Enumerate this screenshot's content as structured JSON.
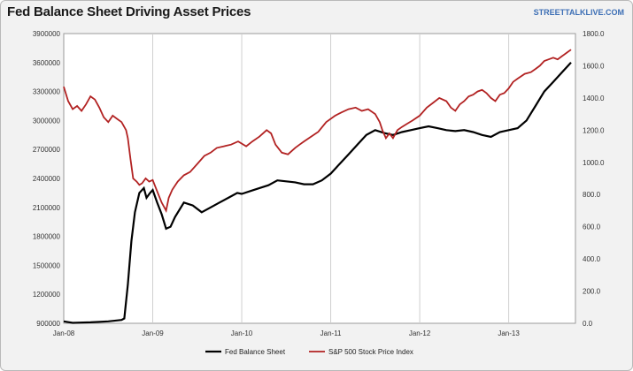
{
  "header": {
    "title": "Fed Balance Sheet Driving Asset Prices",
    "source": "STREETTALKLIVE.COM"
  },
  "chart_data": {
    "type": "line",
    "title": "Fed Balance Sheet Driving Asset Prices",
    "xlabel": "",
    "ylabel": "",
    "x_ticks": [
      "Jan-08",
      "Jan-09",
      "Jan-10",
      "Jan-11",
      "Jan-12",
      "Jan-13"
    ],
    "y_left_ticks": [
      "900000",
      "1200000",
      "1500000",
      "1800000",
      "2100000",
      "2400000",
      "2700000",
      "3000000",
      "3300000",
      "3600000",
      "3900000"
    ],
    "y_right_ticks": [
      "0.0",
      "200.0",
      "400.0",
      "600.0",
      "800.0",
      "1000.0",
      "1200.0",
      "1400.0",
      "1600.0",
      "1800.0"
    ],
    "y_left_lim": [
      900000,
      3900000
    ],
    "y_right_lim": [
      0,
      1800
    ],
    "x_lim": [
      2008.0,
      2013.75
    ],
    "grid": "vertical",
    "legend_position": "bottom",
    "colors": {
      "fed": "#000000",
      "sp500": "#b22222"
    },
    "series": [
      {
        "name": "Fed Balance Sheet",
        "axis": "left",
        "x": [
          2008.0,
          2008.1,
          2008.3,
          2008.5,
          2008.65,
          2008.68,
          2008.72,
          2008.76,
          2008.8,
          2008.85,
          2008.9,
          2008.93,
          2008.97,
          2009.0,
          2009.05,
          2009.1,
          2009.15,
          2009.2,
          2009.25,
          2009.35,
          2009.45,
          2009.55,
          2009.65,
          2009.75,
          2009.85,
          2009.95,
          2010.0,
          2010.1,
          2010.2,
          2010.3,
          2010.4,
          2010.5,
          2010.6,
          2010.7,
          2010.8,
          2010.9,
          2011.0,
          2011.1,
          2011.2,
          2011.3,
          2011.4,
          2011.5,
          2011.6,
          2011.7,
          2011.8,
          2011.9,
          2012.0,
          2012.1,
          2012.2,
          2012.3,
          2012.4,
          2012.5,
          2012.6,
          2012.7,
          2012.8,
          2012.9,
          2013.0,
          2013.1,
          2013.2,
          2013.3,
          2013.4,
          2013.5,
          2013.6,
          2013.7
        ],
        "values": [
          920000,
          905000,
          910000,
          920000,
          935000,
          950000,
          1300000,
          1750000,
          2050000,
          2250000,
          2300000,
          2200000,
          2250000,
          2280000,
          2150000,
          2030000,
          1880000,
          1900000,
          2000000,
          2150000,
          2120000,
          2050000,
          2100000,
          2150000,
          2200000,
          2250000,
          2240000,
          2270000,
          2300000,
          2330000,
          2380000,
          2370000,
          2360000,
          2340000,
          2340000,
          2380000,
          2450000,
          2550000,
          2650000,
          2750000,
          2850000,
          2900000,
          2870000,
          2850000,
          2880000,
          2900000,
          2920000,
          2940000,
          2920000,
          2900000,
          2890000,
          2900000,
          2880000,
          2850000,
          2830000,
          2880000,
          2900000,
          2920000,
          3000000,
          3150000,
          3300000,
          3400000,
          3500000,
          3600000
        ]
      },
      {
        "name": "S&P 500 Stock Price Index",
        "axis": "right",
        "x": [
          2008.0,
          2008.05,
          2008.1,
          2008.15,
          2008.2,
          2008.25,
          2008.3,
          2008.35,
          2008.4,
          2008.45,
          2008.5,
          2008.55,
          2008.6,
          2008.65,
          2008.7,
          2008.72,
          2008.75,
          2008.78,
          2008.82,
          2008.85,
          2008.88,
          2008.92,
          2008.96,
          2009.0,
          2009.05,
          2009.1,
          2009.15,
          2009.18,
          2009.22,
          2009.28,
          2009.35,
          2009.42,
          2009.5,
          2009.58,
          2009.65,
          2009.72,
          2009.8,
          2009.88,
          2009.96,
          2010.05,
          2010.12,
          2010.2,
          2010.28,
          2010.33,
          2010.38,
          2010.45,
          2010.52,
          2010.6,
          2010.65,
          2010.7,
          2010.78,
          2010.86,
          2010.95,
          2011.05,
          2011.12,
          2011.2,
          2011.28,
          2011.35,
          2011.42,
          2011.5,
          2011.55,
          2011.58,
          2011.62,
          2011.66,
          2011.7,
          2011.75,
          2011.8,
          2011.86,
          2011.92,
          2012.0,
          2012.08,
          2012.15,
          2012.22,
          2012.3,
          2012.35,
          2012.4,
          2012.45,
          2012.5,
          2012.55,
          2012.6,
          2012.65,
          2012.7,
          2012.75,
          2012.8,
          2012.85,
          2012.9,
          2012.95,
          2013.0,
          2013.05,
          2013.1,
          2013.18,
          2013.25,
          2013.3,
          2013.35,
          2013.4,
          2013.45,
          2013.5,
          2013.55,
          2013.6,
          2013.65,
          2013.7
        ],
        "values": [
          1470,
          1380,
          1330,
          1350,
          1320,
          1360,
          1410,
          1390,
          1340,
          1280,
          1250,
          1290,
          1270,
          1250,
          1200,
          1150,
          1020,
          900,
          880,
          860,
          870,
          900,
          880,
          890,
          820,
          750,
          700,
          780,
          830,
          880,
          920,
          940,
          990,
          1040,
          1060,
          1090,
          1100,
          1110,
          1130,
          1100,
          1130,
          1160,
          1200,
          1180,
          1110,
          1060,
          1050,
          1090,
          1110,
          1130,
          1160,
          1190,
          1250,
          1290,
          1310,
          1330,
          1340,
          1320,
          1330,
          1300,
          1250,
          1200,
          1150,
          1180,
          1150,
          1200,
          1220,
          1240,
          1260,
          1290,
          1340,
          1370,
          1400,
          1380,
          1340,
          1320,
          1360,
          1380,
          1410,
          1420,
          1440,
          1450,
          1430,
          1400,
          1380,
          1420,
          1430,
          1460,
          1500,
          1520,
          1550,
          1560,
          1580,
          1600,
          1630,
          1640,
          1650,
          1640,
          1660,
          1680,
          1700
        ]
      }
    ]
  }
}
